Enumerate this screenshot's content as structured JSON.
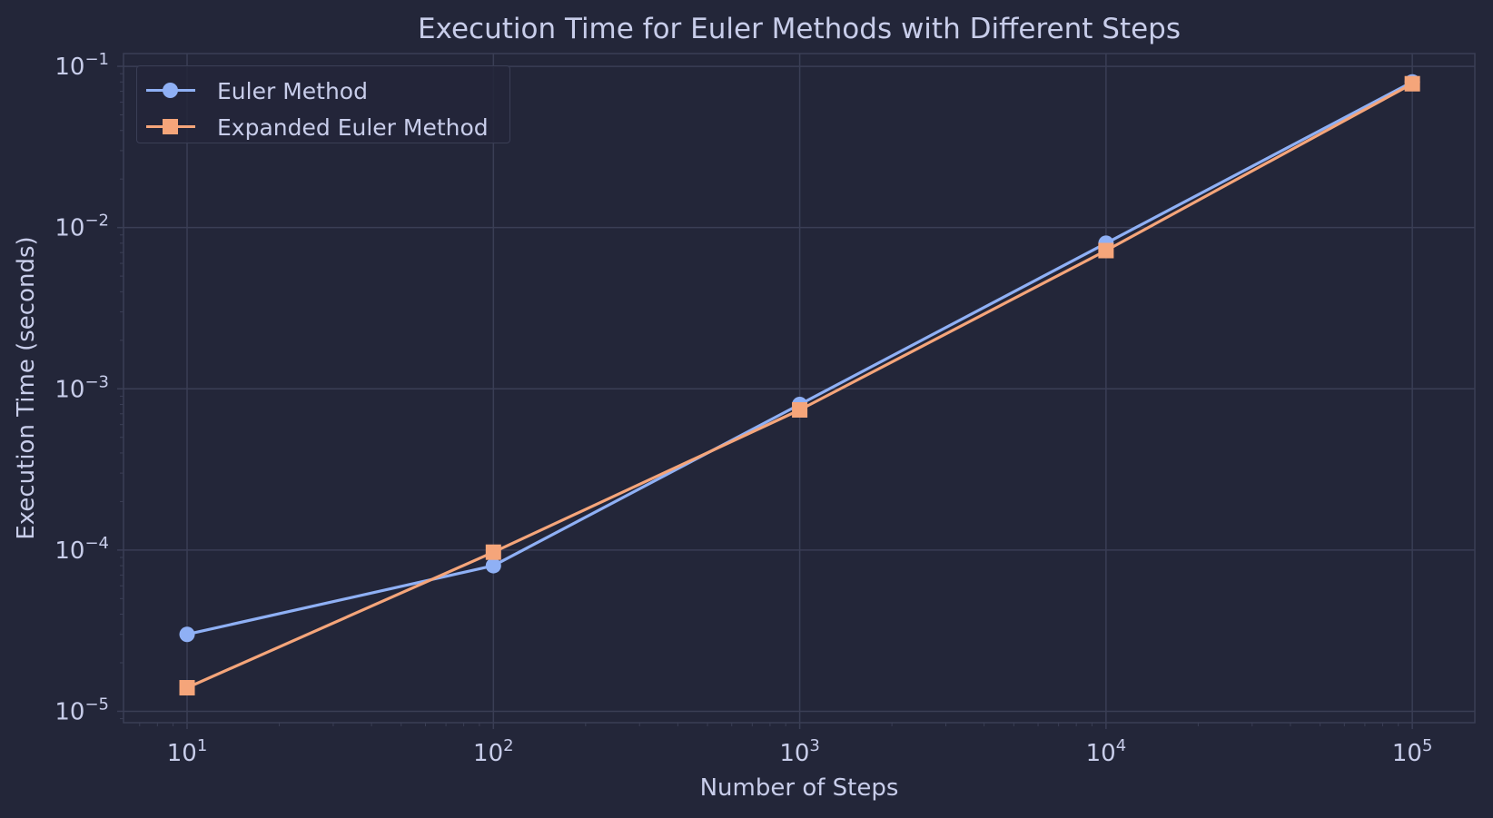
{
  "colors": {
    "background": "#232639",
    "grid": "#3a3e55",
    "text": "#c8cdea",
    "series_1": "#8fb0f5",
    "series_2": "#f5a57a"
  },
  "chart_data": {
    "type": "line",
    "title": "Execution Time for Euler Methods with Different Steps",
    "xlabel": "Number of Steps",
    "ylabel": "Execution Time (seconds)",
    "x_scale": "log",
    "y_scale": "log",
    "grid": true,
    "legend_position": "top-left",
    "xlim": [
      6.2,
      160000
    ],
    "ylim": [
      8.5e-06,
      0.12
    ],
    "x_ticks": [
      10,
      100,
      1000,
      10000,
      100000
    ],
    "x_tick_labels": [
      {
        "base": "10",
        "exp": "1"
      },
      {
        "base": "10",
        "exp": "2"
      },
      {
        "base": "10",
        "exp": "3"
      },
      {
        "base": "10",
        "exp": "4"
      },
      {
        "base": "10",
        "exp": "5"
      }
    ],
    "y_ticks": [
      1e-05,
      0.0001,
      0.001,
      0.01,
      0.1
    ],
    "y_tick_labels": [
      {
        "base": "10",
        "exp": "−5"
      },
      {
        "base": "10",
        "exp": "−4"
      },
      {
        "base": "10",
        "exp": "−3"
      },
      {
        "base": "10",
        "exp": "−2"
      },
      {
        "base": "10",
        "exp": "−1"
      }
    ],
    "x": [
      10,
      100,
      1000,
      10000,
      100000
    ],
    "series": [
      {
        "name": "Euler Method",
        "marker": "circle",
        "color": "#8fb0f5",
        "values": [
          3e-05,
          8e-05,
          0.0008,
          0.008,
          0.08
        ]
      },
      {
        "name": "Expanded Euler Method",
        "marker": "square",
        "color": "#f5a57a",
        "values": [
          1.4e-05,
          9.7e-05,
          0.00074,
          0.0072,
          0.078
        ]
      }
    ]
  }
}
